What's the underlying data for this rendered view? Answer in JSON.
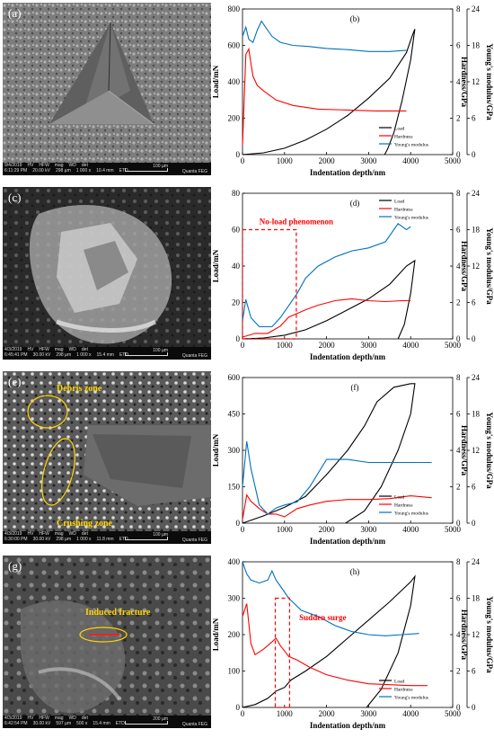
{
  "colors": {
    "load": "#000000",
    "hardness": "#ff0000",
    "modulus": "#0070c0",
    "annotation": "#ff0000",
    "sem_annotation": "#ffd400"
  },
  "sem_panels": [
    {
      "label": "(a)",
      "annotations": [],
      "info": {
        "date": "9/4/2019",
        "time": "6:11:29 PM",
        "hv": "20.00 kV",
        "hfw": "298 µm",
        "mag": "1 000 x",
        "wd": "10.4 mm",
        "det": "ETD",
        "scale": "100 µm",
        "brand": "Quanta FEG",
        "hv_label": "HV",
        "hfw_label": "HFW",
        "mag_label": "mag",
        "wd_label": "WD",
        "det_label": "det"
      }
    },
    {
      "label": "(c)",
      "annotations": [],
      "info": {
        "date": "4/3/2019",
        "time": "6:45:41 PM",
        "hv": "30.00 kV",
        "hfw": "298 µm",
        "mag": "1 000 x",
        "wd": "15.4 mm",
        "det": "ETD",
        "scale": "100 µm",
        "brand": "Quanta FEG",
        "hv_label": "HV",
        "hfw_label": "HFW",
        "mag_label": "mag",
        "wd_label": "WD",
        "det_label": "det"
      }
    },
    {
      "label": "(e)",
      "annotations": [
        "Debris zone",
        "Crushing zone"
      ],
      "info": {
        "date": "4/3/2019",
        "time": "6:30:00 PM",
        "hv": "30.00 kV",
        "hfw": "298 µm",
        "mag": "1 000 x",
        "wd": "11.8 mm",
        "det": "ETD",
        "scale": "100 µm",
        "brand": "Quanta FEG",
        "hv_label": "HV",
        "hfw_label": "HFW",
        "mag_label": "mag",
        "wd_label": "WD",
        "det_label": "det"
      }
    },
    {
      "label": "(g)",
      "annotations": [
        "Induced fracture"
      ],
      "info": {
        "date": "4/3/2019",
        "time": "6:42:54 PM",
        "hv": "30.00 kV",
        "hfw": "597 µm",
        "mag": "500 x",
        "wd": "15.4 mm",
        "det": "ETD",
        "scale": "200 µm",
        "brand": "Quanta FEG",
        "hv_label": "HV",
        "hfw_label": "HFW",
        "mag_label": "mag",
        "wd_label": "WD",
        "det_label": "det"
      }
    }
  ],
  "chart_data": [
    {
      "type": "line",
      "label": "(b)",
      "xlabel": "Indentation depth/nm",
      "ylabel": "Load/mN",
      "y2label": "Hardness/GPa",
      "y3label": "Young's modulus/GPa",
      "xlim": [
        0,
        5000
      ],
      "xticks": [
        0,
        1000,
        2000,
        3000,
        4000,
        5000
      ],
      "ylim": [
        0,
        800
      ],
      "yticks": [
        0,
        200,
        400,
        600,
        800
      ],
      "y2lim": [
        0,
        8
      ],
      "y2ticks": [
        0,
        2,
        4,
        6,
        8
      ],
      "y3lim": [
        0,
        24
      ],
      "y3ticks": [
        0,
        6,
        12,
        18,
        24
      ],
      "legend": [
        "Load",
        "Hardness",
        "Young's modulus"
      ],
      "legend_position": "bottom-right",
      "annotations": [],
      "series": [
        {
          "name": "Load",
          "axis": "y",
          "x": [
            0,
            500,
            1000,
            1500,
            2000,
            2500,
            3000,
            3500,
            3900,
            4050,
            4100,
            4000,
            3800,
            3600,
            3450,
            3380
          ],
          "y": [
            0,
            10,
            35,
            80,
            140,
            215,
            310,
            420,
            560,
            660,
            690,
            520,
            300,
            120,
            30,
            0
          ]
        },
        {
          "name": "Hardness",
          "axis": "y2",
          "x": [
            0,
            80,
            150,
            200,
            250,
            350,
            500,
            800,
            1200,
            1800,
            2500,
            3200,
            3900
          ],
          "y": [
            0.5,
            5.5,
            5.8,
            5.0,
            4.3,
            3.8,
            3.5,
            3.0,
            2.7,
            2.5,
            2.45,
            2.4,
            2.4
          ]
        },
        {
          "name": "Young's modulus",
          "axis": "y3",
          "x": [
            0,
            80,
            150,
            250,
            350,
            450,
            550,
            700,
            900,
            1200,
            1600,
            2000,
            2500,
            3000,
            3500,
            3900
          ],
          "y": [
            19.5,
            21.0,
            19.0,
            18.5,
            20.5,
            22.0,
            21.0,
            19.5,
            18.5,
            18.0,
            17.8,
            17.5,
            17.3,
            17.0,
            17.0,
            17.2
          ]
        }
      ]
    },
    {
      "type": "line",
      "label": "(d)",
      "xlabel": "Indentation depth/nm",
      "ylabel": "Load/mN",
      "y2label": "Hardness/GPa",
      "y3label": "Young's modulus/GPa",
      "xlim": [
        0,
        5000
      ],
      "xticks": [
        0,
        1000,
        2000,
        3000,
        4000,
        5000
      ],
      "ylim": [
        0,
        80
      ],
      "yticks": [
        0,
        20,
        40,
        60,
        80
      ],
      "y2lim": [
        0,
        8
      ],
      "y2ticks": [
        0,
        2,
        4,
        6,
        8
      ],
      "y3lim": [
        0,
        24
      ],
      "y3ticks": [
        0,
        6,
        12,
        18,
        24
      ],
      "legend": [
        "Load",
        "Hardness",
        "Young's modulus"
      ],
      "legend_position": "top-right",
      "annotations": [
        "No-load phenomenon"
      ],
      "series": [
        {
          "name": "Load",
          "axis": "y",
          "x": [
            0,
            500,
            1000,
            1500,
            2000,
            2500,
            3000,
            3500,
            3900,
            4100,
            4000,
            3850,
            3700
          ],
          "y": [
            0,
            0.5,
            2,
            5,
            10,
            16,
            22,
            30,
            40,
            43,
            25,
            8,
            0
          ]
        },
        {
          "name": "Hardness",
          "axis": "y2",
          "x": [
            0,
            300,
            600,
            900,
            1100,
            1300,
            1500,
            1800,
            2200,
            2600,
            3000,
            3400,
            3800,
            4000
          ],
          "y": [
            0.1,
            0.3,
            0.3,
            0.7,
            1.2,
            1.4,
            1.6,
            1.85,
            2.1,
            2.2,
            2.1,
            2.05,
            2.1,
            2.1
          ]
        },
        {
          "name": "Young's modulus",
          "axis": "y3",
          "x": [
            0,
            80,
            200,
            400,
            700,
            900,
            1100,
            1300,
            1500,
            1800,
            2200,
            2600,
            3000,
            3400,
            3700,
            3900,
            4000
          ],
          "y": [
            3.0,
            6.5,
            3.5,
            2.0,
            2.0,
            3.5,
            5.5,
            7.5,
            10.0,
            12.0,
            13.5,
            14.5,
            15.0,
            16.0,
            19.0,
            18.0,
            18.5
          ]
        }
      ]
    },
    {
      "type": "line",
      "label": "(f)",
      "xlabel": "Indentation depth/nm",
      "ylabel": "Load/mN",
      "y2label": "Hardness/GPa",
      "y3label": "Young's modulus/GPa",
      "xlim": [
        0,
        5000
      ],
      "xticks": [
        0,
        1000,
        2000,
        3000,
        4000,
        5000
      ],
      "ylim": [
        0,
        600
      ],
      "yticks": [
        0,
        150,
        300,
        450,
        600
      ],
      "y2lim": [
        0,
        8
      ],
      "y2ticks": [
        0,
        2,
        4,
        6,
        8
      ],
      "y3lim": [
        0,
        24
      ],
      "y3ticks": [
        0,
        6,
        12,
        18,
        24
      ],
      "legend": [
        "Load",
        "Hardness",
        "Young's modulus"
      ],
      "legend_position": "bottom-right",
      "annotations": [],
      "series": [
        {
          "name": "Load",
          "axis": "y",
          "x": [
            0,
            500,
            1000,
            1500,
            2000,
            2500,
            2900,
            3200,
            3600,
            4000,
            4100,
            4000,
            3700,
            3300,
            2900,
            2450
          ],
          "y": [
            0,
            30,
            65,
            110,
            200,
            300,
            400,
            500,
            560,
            575,
            575,
            450,
            300,
            150,
            50,
            0
          ]
        },
        {
          "name": "Hardness",
          "axis": "y2",
          "x": [
            0,
            100,
            200,
            400,
            600,
            800,
            1000,
            1300,
            1600,
            2000,
            2500,
            3000,
            3500,
            4000,
            4500
          ],
          "y": [
            0.2,
            1.55,
            1.2,
            0.8,
            0.5,
            0.5,
            0.35,
            0.8,
            1.0,
            1.2,
            1.3,
            1.3,
            1.35,
            1.5,
            1.4
          ]
        },
        {
          "name": "Young's modulus",
          "axis": "y3",
          "x": [
            0,
            100,
            200,
            400,
            600,
            800,
            1000,
            1300,
            1600,
            2000,
            2500,
            3000,
            3500,
            4000,
            4500
          ],
          "y": [
            6.0,
            13.5,
            9.0,
            3.0,
            1.5,
            2.5,
            3.0,
            3.5,
            6.0,
            10.5,
            10.5,
            10.0,
            10.0,
            10.0,
            10.0
          ]
        }
      ]
    },
    {
      "type": "line",
      "label": "(h)",
      "xlabel": "Indentation depth/nm",
      "ylabel": "Load/mN",
      "y2label": "Hardness/GPa",
      "y3label": "Young's modulus/GPa",
      "xlim": [
        0,
        5000
      ],
      "xticks": [
        0,
        1000,
        2000,
        3000,
        4000,
        5000
      ],
      "ylim": [
        0,
        400
      ],
      "yticks": [
        0,
        100,
        200,
        300,
        400
      ],
      "y2lim": [
        0,
        8
      ],
      "y2ticks": [
        0,
        2,
        4,
        6,
        8
      ],
      "y3lim": [
        0,
        24
      ],
      "y3ticks": [
        0,
        6,
        12,
        18,
        24
      ],
      "legend": [
        "Load",
        "Hardness",
        "Young's modulus"
      ],
      "legend_position": "bottom-right",
      "annotations": [
        "Sudden surge"
      ],
      "series": [
        {
          "name": "Load",
          "axis": "y",
          "x": [
            0,
            300,
            600,
            800,
            900,
            1000,
            1150,
            1500,
            2000,
            2500,
            3000,
            3500,
            4000,
            4100,
            4000,
            3700,
            3300,
            2950
          ],
          "y": [
            0,
            8,
            25,
            45,
            50,
            55,
            75,
            100,
            140,
            190,
            240,
            290,
            345,
            360,
            280,
            150,
            50,
            0
          ]
        },
        {
          "name": "Hardness",
          "axis": "y2",
          "x": [
            0,
            100,
            200,
            300,
            500,
            700,
            800,
            900,
            1000,
            1100,
            1300,
            1600,
            2000,
            2500,
            3000,
            3500,
            4000,
            4400
          ],
          "y": [
            5.0,
            5.7,
            3.5,
            2.9,
            3.2,
            3.6,
            3.8,
            3.4,
            3.1,
            2.8,
            2.6,
            2.2,
            1.8,
            1.5,
            1.3,
            1.25,
            1.2,
            1.2
          ]
        },
        {
          "name": "Young's modulus",
          "axis": "y3",
          "x": [
            0,
            100,
            200,
            400,
            600,
            700,
            800,
            900,
            1100,
            1400,
            1800,
            2200,
            2600,
            3000,
            3400,
            3800,
            4200
          ],
          "y": [
            24.0,
            22.0,
            21.0,
            20.5,
            21.0,
            22.5,
            21.0,
            20.0,
            18.0,
            16.0,
            15.0,
            13.5,
            12.5,
            12.0,
            11.8,
            12.0,
            12.2
          ]
        }
      ]
    }
  ]
}
